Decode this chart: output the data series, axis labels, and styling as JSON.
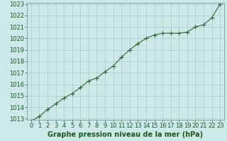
{
  "x": [
    0,
    1,
    2,
    3,
    4,
    5,
    6,
    7,
    8,
    9,
    10,
    11,
    12,
    13,
    14,
    15,
    16,
    17,
    18,
    19,
    20,
    21,
    22,
    23
  ],
  "y": [
    1012.8,
    1013.2,
    1013.8,
    1014.3,
    1014.8,
    1015.2,
    1015.7,
    1016.3,
    1016.55,
    1017.1,
    1017.6,
    1018.35,
    1019.0,
    1019.55,
    1020.0,
    1020.3,
    1020.45,
    1020.45,
    1020.45,
    1020.55,
    1021.0,
    1021.2,
    1021.8,
    1023.0
  ],
  "line_color": "#2d6a2d",
  "marker": "+",
  "marker_size": 4,
  "line_width": 0.8,
  "bg_color": "#cce8e8",
  "grid_color": "#b0c8c8",
  "xlabel": "Graphe pression niveau de la mer (hPa)",
  "xlabel_color": "#1a5c1a",
  "xlabel_fontsize": 7,
  "tick_color": "#1a5c1a",
  "tick_fontsize": 6,
  "ylim": [
    1013,
    1023
  ],
  "xlim": [
    -0.5,
    23.5
  ],
  "yticks": [
    1013,
    1014,
    1015,
    1016,
    1017,
    1018,
    1019,
    1020,
    1021,
    1022,
    1023
  ],
  "xticks": [
    0,
    1,
    2,
    3,
    4,
    5,
    6,
    7,
    8,
    9,
    10,
    11,
    12,
    13,
    14,
    15,
    16,
    17,
    18,
    19,
    20,
    21,
    22,
    23
  ]
}
